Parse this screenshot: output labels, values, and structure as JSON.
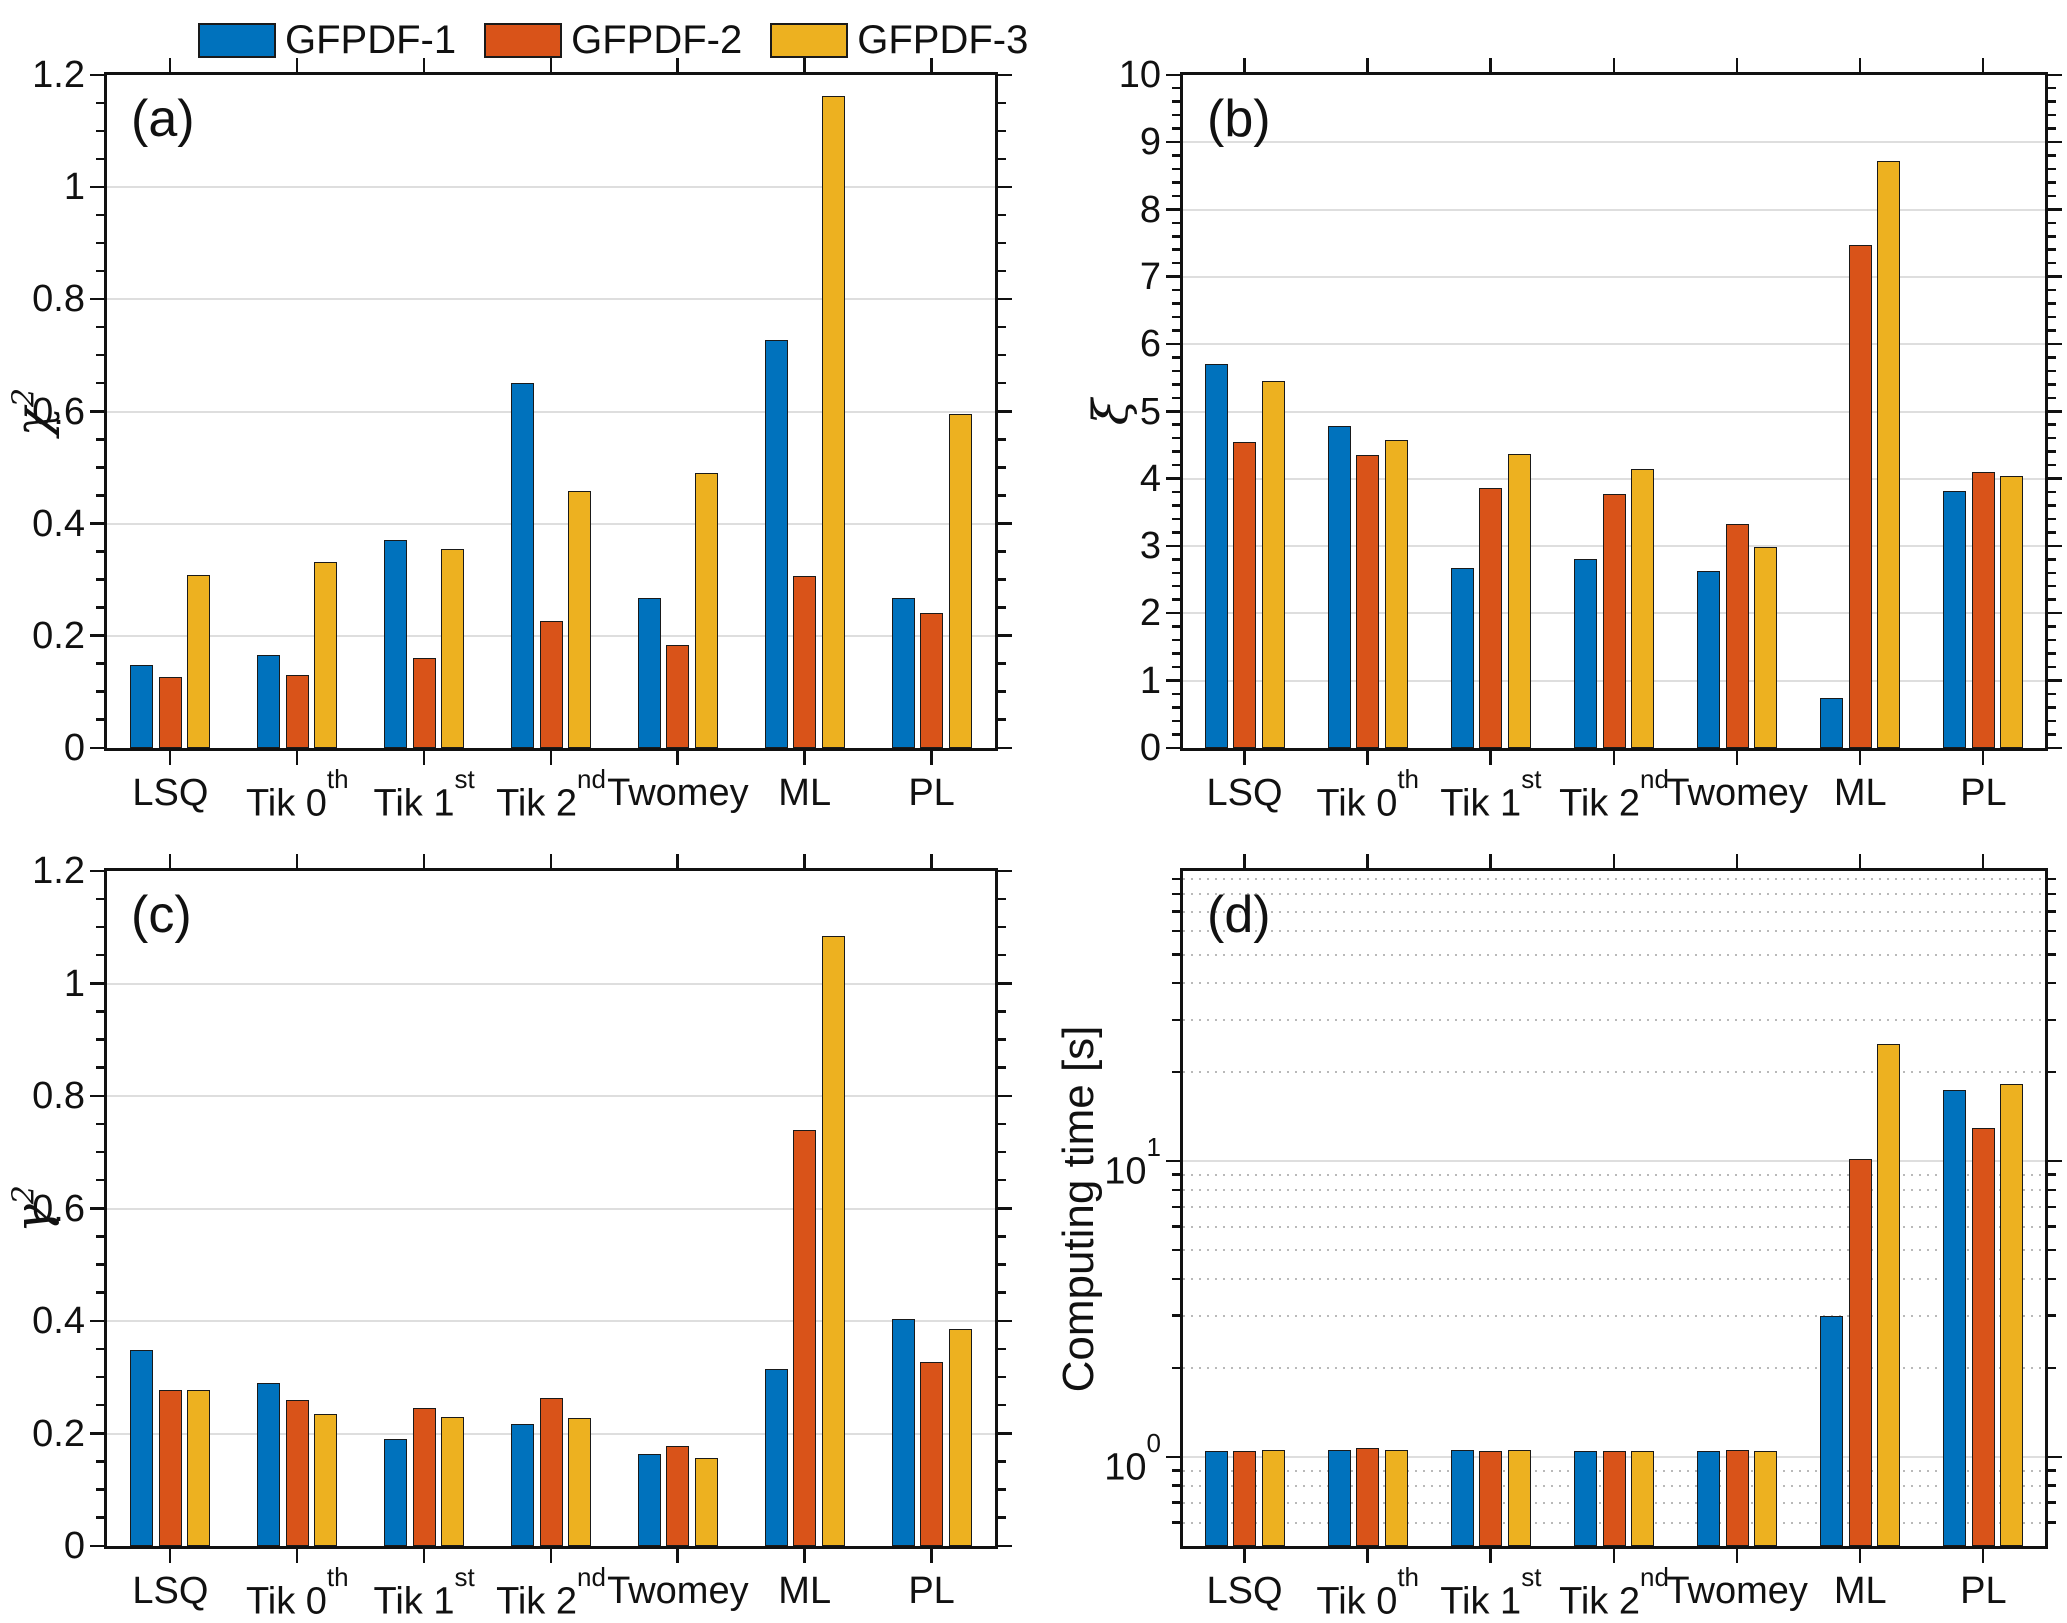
{
  "legend": {
    "position": "top-left",
    "entries": [
      {
        "label": "GFPDF-1",
        "color": "#0072BD"
      },
      {
        "label": "GFPDF-2",
        "color": "#D95319"
      },
      {
        "label": "GFPDF-3",
        "color": "#EDB120"
      }
    ]
  },
  "x_categories": [
    {
      "text": "LSQ",
      "sup": ""
    },
    {
      "text": "Tik 0",
      "sup": "th"
    },
    {
      "text": "Tik 1",
      "sup": "st"
    },
    {
      "text": "Tik 2",
      "sup": "nd"
    },
    {
      "text": "Twomey",
      "sup": ""
    },
    {
      "text": "ML",
      "sup": ""
    },
    {
      "text": "PL",
      "sup": ""
    }
  ],
  "chart_data": [
    {
      "id": "a",
      "panel_label": "(a)",
      "type": "bar",
      "scale": "linear",
      "categories": [
        "LSQ",
        "Tik 0th",
        "Tik 1st",
        "Tik 2nd",
        "Twomey",
        "ML",
        "PL"
      ],
      "ylabel": "χ²",
      "ylabel_rich": {
        "base": "χ",
        "sup": "2",
        "greek": true
      },
      "ylim": [
        0,
        1.2
      ],
      "grid_major": [
        0.2,
        0.4,
        0.6,
        0.8,
        1.0
      ],
      "yticks": [
        {
          "v": 0,
          "label": "0"
        },
        {
          "v": 0.2,
          "label": "0.2"
        },
        {
          "v": 0.4,
          "label": "0.4"
        },
        {
          "v": 0.6,
          "label": "0.6"
        },
        {
          "v": 0.8,
          "label": "0.8"
        },
        {
          "v": 1,
          "label": "1"
        },
        {
          "v": 1.2,
          "label": "1.2"
        }
      ],
      "yminor_step": 0.05,
      "series": [
        {
          "name": "GFPDF-1",
          "color": "#0072BD",
          "values": [
            0.148,
            0.165,
            0.371,
            0.651,
            0.268,
            0.727,
            0.268
          ]
        },
        {
          "name": "GFPDF-2",
          "color": "#D95319",
          "values": [
            0.127,
            0.131,
            0.161,
            0.226,
            0.184,
            0.307,
            0.241
          ]
        },
        {
          "name": "GFPDF-3",
          "color": "#EDB120",
          "values": [
            0.309,
            0.331,
            0.355,
            0.458,
            0.49,
            1.163,
            0.596
          ]
        }
      ]
    },
    {
      "id": "b",
      "panel_label": "(b)",
      "type": "bar",
      "scale": "linear",
      "categories": [
        "LSQ",
        "Tik 0th",
        "Tik 1st",
        "Tik 2nd",
        "Twomey",
        "ML",
        "PL"
      ],
      "ylabel": "ξ",
      "ylabel_rich": {
        "base": "ξ",
        "sup": "",
        "greek": true
      },
      "ylim": [
        0,
        10
      ],
      "grid_major": [
        1,
        2,
        3,
        4,
        5,
        6,
        7,
        8,
        9
      ],
      "yticks": [
        {
          "v": 0,
          "label": "0"
        },
        {
          "v": 1,
          "label": "1"
        },
        {
          "v": 2,
          "label": "2"
        },
        {
          "v": 3,
          "label": "3"
        },
        {
          "v": 4,
          "label": "4"
        },
        {
          "v": 5,
          "label": "5"
        },
        {
          "v": 6,
          "label": "6"
        },
        {
          "v": 7,
          "label": "7"
        },
        {
          "v": 8,
          "label": "8"
        },
        {
          "v": 9,
          "label": "9"
        },
        {
          "v": 10,
          "label": "10"
        }
      ],
      "yminor_step": 0.2,
      "series": [
        {
          "name": "GFPDF-1",
          "color": "#0072BD",
          "values": [
            5.7,
            4.78,
            2.68,
            2.81,
            2.63,
            0.75,
            3.82
          ]
        },
        {
          "name": "GFPDF-2",
          "color": "#D95319",
          "values": [
            4.55,
            4.35,
            3.87,
            3.78,
            3.33,
            7.48,
            4.1
          ]
        },
        {
          "name": "GFPDF-3",
          "color": "#EDB120",
          "values": [
            5.45,
            4.57,
            4.37,
            4.15,
            2.98,
            8.72,
            4.04
          ]
        }
      ]
    },
    {
      "id": "c",
      "panel_label": "(c)",
      "type": "bar",
      "scale": "linear",
      "categories": [
        "LSQ",
        "Tik 0th",
        "Tik 1st",
        "Tik 2nd",
        "Twomey",
        "ML",
        "PL"
      ],
      "ylabel": "γ²",
      "ylabel_rich": {
        "base": "γ",
        "sup": "2",
        "greek": true
      },
      "ylim": [
        0,
        1.2
      ],
      "grid_major": [
        0.2,
        0.4,
        0.6,
        0.8,
        1.0
      ],
      "yticks": [
        {
          "v": 0,
          "label": "0"
        },
        {
          "v": 0.2,
          "label": "0.2"
        },
        {
          "v": 0.4,
          "label": "0.4"
        },
        {
          "v": 0.6,
          "label": "0.6"
        },
        {
          "v": 0.8,
          "label": "0.8"
        },
        {
          "v": 1,
          "label": "1"
        },
        {
          "v": 1.2,
          "label": "1.2"
        }
      ],
      "yminor_step": 0.05,
      "series": [
        {
          "name": "GFPDF-1",
          "color": "#0072BD",
          "values": [
            0.349,
            0.289,
            0.19,
            0.217,
            0.163,
            0.315,
            0.403
          ]
        },
        {
          "name": "GFPDF-2",
          "color": "#D95319",
          "values": [
            0.277,
            0.26,
            0.245,
            0.264,
            0.178,
            0.74,
            0.327
          ]
        },
        {
          "name": "GFPDF-3",
          "color": "#EDB120",
          "values": [
            0.277,
            0.235,
            0.229,
            0.227,
            0.156,
            1.085,
            0.385
          ]
        }
      ]
    },
    {
      "id": "d",
      "panel_label": "(d)",
      "type": "bar",
      "scale": "log",
      "categories": [
        "LSQ",
        "Tik 0th",
        "Tik 1st",
        "Tik 2nd",
        "Twomey",
        "ML",
        "PL"
      ],
      "ylabel": "Computing time [s]",
      "ylabel_rich": {
        "base": "Computing time [s]",
        "sup": "",
        "greek": false
      },
      "ylim": [
        0.5,
        96
      ],
      "grid_major": [
        1,
        10
      ],
      "grid_minor": [
        0.6,
        0.7,
        0.8,
        0.9,
        2,
        3,
        4,
        5,
        6,
        7,
        8,
        9,
        20,
        30,
        40,
        50,
        60,
        70,
        80,
        90
      ],
      "yticks": [
        {
          "v": 1,
          "base": "10",
          "exp": "0"
        },
        {
          "v": 10,
          "base": "10",
          "exp": "1"
        }
      ],
      "series": [
        {
          "name": "GFPDF-1",
          "color": "#0072BD",
          "values": [
            1.05,
            1.06,
            1.06,
            1.05,
            1.05,
            3.0,
            17.5
          ]
        },
        {
          "name": "GFPDF-2",
          "color": "#D95319",
          "values": [
            1.05,
            1.07,
            1.05,
            1.05,
            1.06,
            10.2,
            13.0
          ]
        },
        {
          "name": "GFPDF-3",
          "color": "#EDB120",
          "values": [
            1.06,
            1.06,
            1.06,
            1.05,
            1.05,
            25.0,
            18.3
          ]
        }
      ]
    }
  ]
}
